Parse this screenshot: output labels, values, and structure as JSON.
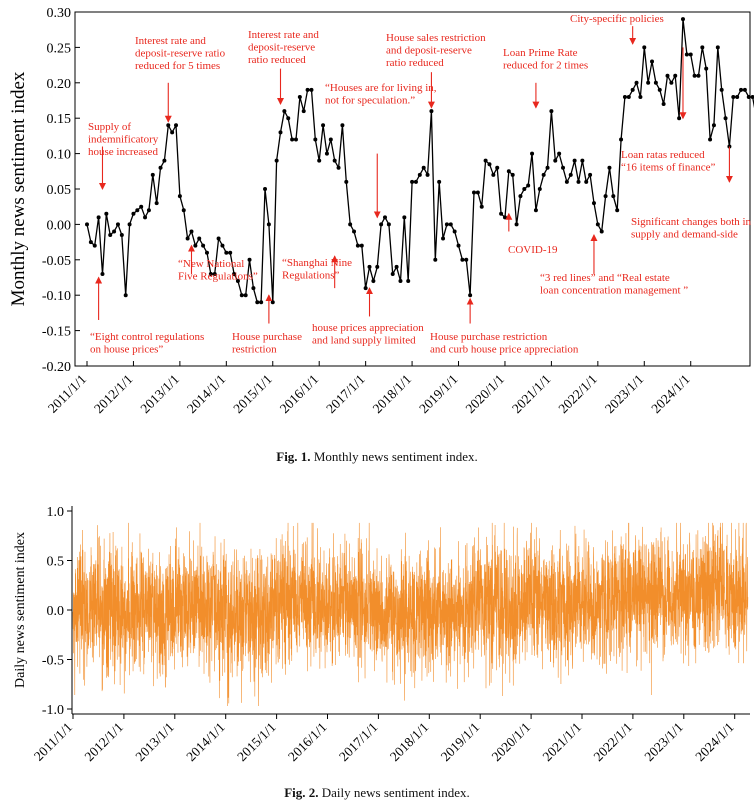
{
  "figures": [
    {
      "caption_label": "Fig. 1.",
      "caption_text": "Monthly news sentiment index.",
      "chart_data": {
        "type": "line",
        "title": "",
        "ylabel": "Monthly news sentiment index",
        "xlabel": "",
        "ylim": [
          -0.2,
          0.3
        ],
        "yticks": [
          "-0.20",
          "-0.15",
          "-0.10",
          "-0.05",
          "0.00",
          "0.05",
          "0.10",
          "0.15",
          "0.20",
          "0.25",
          "0.30"
        ],
        "xticks": [
          "2011/1/1",
          "2012/1/1",
          "2013/1/1",
          "2014/1/1",
          "2015/1/1",
          "2016/1/1",
          "2017/1/1",
          "2018/1/1",
          "2019/1/1",
          "2020/1/1",
          "2021/1/1",
          "2022/1/1",
          "2023/1/1",
          "2024/1/1"
        ],
        "x_start": "2011/1/1",
        "x_step": "1 month",
        "series": [
          {
            "name": "Monthly news sentiment index",
            "color": "#000000",
            "values": [
              0.0,
              -0.025,
              -0.03,
              0.01,
              -0.07,
              0.015,
              -0.015,
              -0.01,
              0.0,
              -0.015,
              -0.1,
              0.0,
              0.015,
              0.02,
              0.025,
              0.01,
              0.02,
              0.07,
              0.03,
              0.08,
              0.09,
              0.14,
              0.13,
              0.14,
              0.04,
              0.02,
              -0.02,
              -0.01,
              -0.03,
              -0.02,
              -0.03,
              -0.04,
              -0.07,
              -0.07,
              -0.02,
              -0.03,
              -0.04,
              -0.04,
              -0.07,
              -0.08,
              -0.1,
              -0.1,
              -0.05,
              -0.09,
              -0.11,
              -0.11,
              0.05,
              0.0,
              -0.11,
              0.09,
              0.13,
              0.16,
              0.15,
              0.12,
              0.12,
              0.18,
              0.16,
              0.19,
              0.19,
              0.12,
              0.09,
              0.14,
              0.1,
              0.12,
              0.09,
              0.08,
              0.14,
              0.06,
              0.0,
              -0.01,
              -0.03,
              -0.03,
              -0.09,
              -0.06,
              -0.08,
              -0.06,
              0.0,
              0.01,
              0.0,
              -0.07,
              -0.06,
              -0.08,
              0.01,
              -0.08,
              0.06,
              0.06,
              0.07,
              0.08,
              0.07,
              0.16,
              -0.05,
              0.06,
              -0.02,
              0.0,
              0.0,
              -0.01,
              -0.03,
              -0.05,
              -0.05,
              -0.1,
              0.045,
              0.045,
              0.025,
              0.09,
              0.085,
              0.07,
              0.08,
              0.015,
              0.01,
              0.075,
              0.07,
              0.0,
              0.04,
              0.05,
              0.055,
              0.1,
              0.02,
              0.05,
              0.07,
              0.08,
              0.16,
              0.09,
              0.1,
              0.08,
              0.06,
              0.07,
              0.09,
              0.06,
              0.09,
              0.06,
              0.07,
              0.03,
              0.0,
              -0.01,
              0.04,
              0.08,
              0.04,
              0.02,
              0.12,
              0.18,
              0.18,
              0.19,
              0.2,
              0.18,
              0.25,
              0.2,
              0.23,
              0.2,
              0.19,
              0.17,
              0.21,
              0.2,
              0.21,
              0.15,
              0.29,
              0.24,
              0.24,
              0.21,
              0.21,
              0.25,
              0.22,
              0.12,
              0.14,
              0.25,
              0.19,
              0.15,
              0.11,
              0.18,
              0.18,
              0.19,
              0.19,
              0.18,
              0.18,
              0.15,
              0.19,
              0.18
            ]
          }
        ],
        "annotations": [
          {
            "lines": [
              "Supply of",
              "indemnificatory",
              "house increased"
            ],
            "month": 4,
            "from": 0.11,
            "to": 0.05
          },
          {
            "lines": [
              "“Eight control regulations",
              "on house prices”"
            ],
            "month": 3,
            "from": -0.135,
            "to": -0.075
          },
          {
            "lines": [
              "Interest rate and",
              "deposit-reserve ratio",
              "reduced for 5 times"
            ],
            "month": 21,
            "from": 0.2,
            "to": 0.145
          },
          {
            "lines": [
              "“New National",
              "Five Regulations”"
            ],
            "month": 27,
            "from": -0.07,
            "to": -0.03
          },
          {
            "lines": [
              "Interest rate and",
              "deposit-reserve",
              "ratio reduced"
            ],
            "month": 50,
            "from": 0.22,
            "to": 0.17
          },
          {
            "lines": [
              "House purchase",
              "restriction"
            ],
            "month": 47,
            "from": -0.14,
            "to": -0.1
          },
          {
            "lines": [
              "“Shanghai Nine",
              "Regulations”"
            ],
            "month": 64,
            "from": -0.09,
            "to": -0.045
          },
          {
            "lines": [
              "house prices appreciation",
              "and land supply limited"
            ],
            "month": 73,
            "from": -0.13,
            "to": -0.09
          },
          {
            "lines": [
              "“Houses are for living in,",
              "not for speculation.”"
            ],
            "month": 75,
            "from": 0.1,
            "to": 0.01
          },
          {
            "lines": [
              "House sales restriction",
              "and deposit-reserve",
              "ratio reduced"
            ],
            "month": 89,
            "from": 0.215,
            "to": 0.165
          },
          {
            "lines": [
              "House purchase restriction",
              "and curb house price appreciation"
            ],
            "month": 99,
            "from": -0.14,
            "to": -0.105
          },
          {
            "lines": [
              "Loan Prime Rate",
              "reduced for 2 times"
            ],
            "month": 116,
            "from": 0.2,
            "to": 0.165
          },
          {
            "lines": [
              "COVID-19"
            ],
            "month": 109,
            "from": -0.01,
            "to": 0.015
          },
          {
            "lines": [
              "City-specific policies"
            ],
            "month": 141,
            "from": 0.28,
            "to": 0.255
          },
          {
            "lines": [
              "“3 red lines” and “Real estate",
              "loan concentration management ”"
            ],
            "month": 131,
            "from": -0.07,
            "to": -0.015
          },
          {
            "lines": [
              "Loan ratas reduced",
              "“16 items of finance”"
            ],
            "month": 154,
            "from": 0.25,
            "to": 0.15
          },
          {
            "lines": [
              "Significant changes both in",
              "supply and demand-side"
            ],
            "month": 166,
            "from": 0.11,
            "to": 0.06
          }
        ]
      }
    },
    {
      "caption_label": "Fig. 2.",
      "caption_text": "Daily news sentiment index.",
      "chart_data": {
        "type": "line",
        "title": "",
        "ylabel": "Daily news sentiment index",
        "xlabel": "",
        "ylim": [
          -1.0,
          1.0
        ],
        "yticks": [
          "-1.0",
          "-0.5",
          "0.0",
          "0.5",
          "1.0"
        ],
        "xticks": [
          "2011/1/1",
          "2012/1/1",
          "2013/1/1",
          "2014/1/1",
          "2015/1/1",
          "2016/1/1",
          "2017/1/1",
          "2018/1/1",
          "2019/1/1",
          "2020/1/1",
          "2021/1/1",
          "2022/1/1",
          "2023/1/1",
          "2024/1/1"
        ],
        "x_start": "2011/1/1",
        "x_step": "1 day",
        "point_count": 4900,
        "value_range": [
          -0.97,
          0.88
        ],
        "seed": 20110101,
        "series": [
          {
            "name": "Daily news sentiment index",
            "color": "#f28e2b",
            "yearly_mean": [
              0.0,
              -0.02,
              0.02,
              -0.05,
              0.1,
              0.05,
              -0.05,
              0.0,
              0.05,
              0.05,
              0.1,
              0.15,
              0.2,
              0.15
            ]
          }
        ]
      }
    }
  ]
}
